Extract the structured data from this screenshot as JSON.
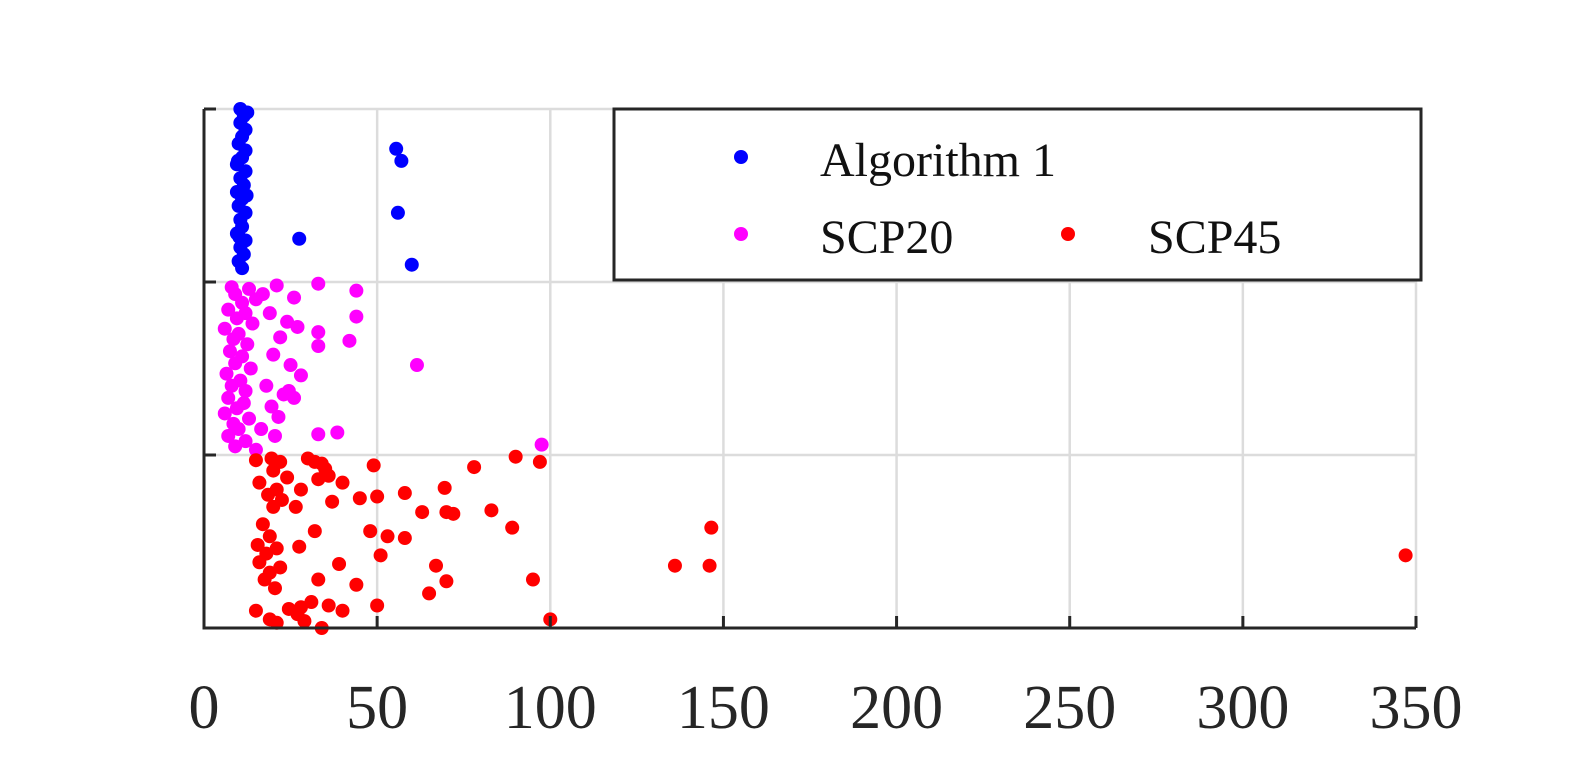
{
  "chart_data": {
    "type": "scatter",
    "title": "",
    "xlabel": "",
    "ylabel": "",
    "xlim": [
      0,
      350
    ],
    "ylim": [
      0,
      3
    ],
    "x_ticks": [
      0,
      50,
      100,
      150,
      200,
      250,
      300,
      350
    ],
    "x_tick_labels": [
      "0",
      "50",
      "100",
      "150",
      "200",
      "250",
      "300",
      "350"
    ],
    "y_ticks": [
      0,
      1,
      2,
      3
    ],
    "grid": true,
    "legend_position": "top-right",
    "series": [
      {
        "name": "Algorithm 1",
        "color": "#0000ff",
        "points": [
          [
            10.5,
            3.0
          ],
          [
            11.5,
            2.96
          ],
          [
            10.5,
            2.92
          ],
          [
            12.0,
            2.88
          ],
          [
            11.0,
            2.84
          ],
          [
            10.0,
            2.8
          ],
          [
            12.0,
            2.76
          ],
          [
            11.0,
            2.72
          ],
          [
            9.5,
            2.68
          ],
          [
            12.0,
            2.64
          ],
          [
            10.5,
            2.6
          ],
          [
            11.5,
            2.56
          ],
          [
            9.5,
            2.52
          ],
          [
            11.0,
            2.48
          ],
          [
            10.0,
            2.44
          ],
          [
            12.0,
            2.4
          ],
          [
            10.5,
            2.36
          ],
          [
            11.0,
            2.32
          ],
          [
            9.5,
            2.28
          ],
          [
            12.0,
            2.24
          ],
          [
            10.5,
            2.2
          ],
          [
            11.5,
            2.16
          ],
          [
            10.0,
            2.12
          ],
          [
            11.0,
            2.08
          ],
          [
            12.5,
            2.98
          ],
          [
            9.8,
            2.7
          ],
          [
            12.3,
            2.5
          ],
          [
            10.2,
            2.26
          ],
          [
            55.5,
            2.77
          ],
          [
            57.0,
            2.7
          ],
          [
            56.0,
            2.4
          ],
          [
            27.5,
            2.25
          ],
          [
            60.0,
            2.1
          ]
        ]
      },
      {
        "name": "SCP20",
        "color": "#ff00ff",
        "points": [
          [
            8.0,
            1.97
          ],
          [
            13.0,
            1.96
          ],
          [
            9.0,
            1.93
          ],
          [
            15.0,
            1.9
          ],
          [
            11.0,
            1.88
          ],
          [
            7.0,
            1.84
          ],
          [
            12.0,
            1.82
          ],
          [
            9.5,
            1.79
          ],
          [
            14.0,
            1.76
          ],
          [
            6.0,
            1.73
          ],
          [
            10.0,
            1.7
          ],
          [
            8.5,
            1.67
          ],
          [
            12.5,
            1.64
          ],
          [
            7.5,
            1.6
          ],
          [
            11.0,
            1.57
          ],
          [
            9.0,
            1.53
          ],
          [
            13.5,
            1.5
          ],
          [
            6.5,
            1.47
          ],
          [
            10.5,
            1.43
          ],
          [
            8.0,
            1.4
          ],
          [
            12.0,
            1.37
          ],
          [
            7.0,
            1.33
          ],
          [
            11.5,
            1.3
          ],
          [
            9.5,
            1.27
          ],
          [
            6.0,
            1.24
          ],
          [
            13.0,
            1.21
          ],
          [
            8.5,
            1.18
          ],
          [
            10.0,
            1.15
          ],
          [
            7.0,
            1.11
          ],
          [
            12.0,
            1.08
          ],
          [
            9.0,
            1.05
          ],
          [
            17.0,
            1.93
          ],
          [
            21.0,
            1.98
          ],
          [
            26.0,
            1.91
          ],
          [
            19.0,
            1.82
          ],
          [
            24.0,
            1.77
          ],
          [
            22.0,
            1.68
          ],
          [
            27.0,
            1.74
          ],
          [
            20.0,
            1.58
          ],
          [
            25.0,
            1.52
          ],
          [
            28.0,
            1.46
          ],
          [
            18.0,
            1.4
          ],
          [
            23.0,
            1.35
          ],
          [
            26.0,
            1.33
          ],
          [
            19.5,
            1.28
          ],
          [
            21.5,
            1.22
          ],
          [
            16.5,
            1.15
          ],
          [
            20.5,
            1.11
          ],
          [
            24.5,
            1.37
          ],
          [
            33.0,
            1.99
          ],
          [
            44.0,
            1.95
          ],
          [
            44.0,
            1.8
          ],
          [
            33.0,
            1.71
          ],
          [
            42.0,
            1.66
          ],
          [
            33.0,
            1.63
          ],
          [
            61.5,
            1.52
          ],
          [
            33.0,
            1.12
          ],
          [
            38.5,
            1.13
          ],
          [
            97.5,
            1.06
          ],
          [
            15.0,
            1.03
          ]
        ]
      },
      {
        "name": "SCP45",
        "color": "#ff0000",
        "points": [
          [
            15.0,
            0.97
          ],
          [
            19.5,
            0.98
          ],
          [
            22.0,
            0.96
          ],
          [
            20.0,
            0.91
          ],
          [
            24.0,
            0.87
          ],
          [
            16.0,
            0.84
          ],
          [
            21.0,
            0.8
          ],
          [
            18.5,
            0.77
          ],
          [
            22.5,
            0.74
          ],
          [
            20.0,
            0.7
          ],
          [
            17.0,
            0.6
          ],
          [
            19.0,
            0.53
          ],
          [
            15.5,
            0.48
          ],
          [
            21.0,
            0.46
          ],
          [
            18.0,
            0.43
          ],
          [
            16.0,
            0.38
          ],
          [
            22.0,
            0.35
          ],
          [
            19.0,
            0.32
          ],
          [
            17.5,
            0.28
          ],
          [
            20.5,
            0.23
          ],
          [
            15.0,
            0.1
          ],
          [
            19.0,
            0.05
          ],
          [
            21.0,
            0.03
          ],
          [
            24.5,
            0.11
          ],
          [
            27.0,
            0.08
          ],
          [
            29.0,
            0.04
          ],
          [
            28.0,
            0.12
          ],
          [
            31.0,
            0.15
          ],
          [
            34.0,
            0.0
          ],
          [
            30.0,
            0.98
          ],
          [
            32.0,
            0.96
          ],
          [
            34.0,
            0.95
          ],
          [
            35.0,
            0.92
          ],
          [
            36.0,
            0.88
          ],
          [
            33.0,
            0.86
          ],
          [
            40.0,
            0.84
          ],
          [
            28.0,
            0.8
          ],
          [
            37.0,
            0.73
          ],
          [
            26.5,
            0.7
          ],
          [
            32.0,
            0.56
          ],
          [
            27.5,
            0.47
          ],
          [
            39.0,
            0.37
          ],
          [
            33.0,
            0.28
          ],
          [
            36.0,
            0.13
          ],
          [
            40.0,
            0.1
          ],
          [
            44.0,
            0.25
          ],
          [
            49.0,
            0.94
          ],
          [
            45.0,
            0.75
          ],
          [
            50.0,
            0.76
          ],
          [
            58.0,
            0.78
          ],
          [
            69.5,
            0.81
          ],
          [
            70.0,
            0.67
          ],
          [
            63.0,
            0.67
          ],
          [
            72.0,
            0.66
          ],
          [
            83.0,
            0.68
          ],
          [
            90.0,
            0.99
          ],
          [
            97.0,
            0.96
          ],
          [
            78.0,
            0.93
          ],
          [
            48.0,
            0.56
          ],
          [
            53.0,
            0.53
          ],
          [
            58.0,
            0.52
          ],
          [
            51.0,
            0.42
          ],
          [
            67.0,
            0.36
          ],
          [
            70.0,
            0.27
          ],
          [
            65.0,
            0.2
          ],
          [
            50.0,
            0.13
          ],
          [
            89.0,
            0.58
          ],
          [
            95.0,
            0.28
          ],
          [
            100.0,
            0.05
          ],
          [
            146.5,
            0.58
          ],
          [
            136.0,
            0.36
          ],
          [
            146.0,
            0.36
          ],
          [
            347.0,
            0.42
          ]
        ]
      }
    ]
  }
}
